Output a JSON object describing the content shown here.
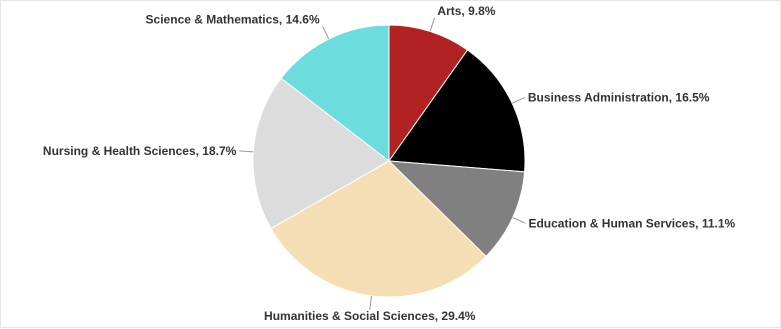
{
  "chart_data": {
    "type": "pie",
    "title": "",
    "start_angle_deg": 0,
    "direction": "clockwise",
    "slices": [
      {
        "name": "Arts",
        "value": 9.8,
        "label": "Arts, 9.8%",
        "color": "#b22222"
      },
      {
        "name": "Business Administration",
        "value": 16.5,
        "label": "Business Administration, 16.5%",
        "color": "#000000"
      },
      {
        "name": "Education & Human Services",
        "value": 11.1,
        "label": "Education & Human Services, 11.1%",
        "color": "#808080"
      },
      {
        "name": "Humanities & Social Sciences",
        "value": 29.4,
        "label": "Humanities & Social Sciences, 29.4%",
        "color": "#f5deb3"
      },
      {
        "name": "Nursing & Health Sciences",
        "value": 18.7,
        "label": "Nursing & Health Sciences, 18.7%",
        "color": "#dcdcdc"
      },
      {
        "name": "Science & Mathematics",
        "value": 14.6,
        "label": "Science & Mathematics, 14.6%",
        "color": "#6cdcdc"
      }
    ]
  }
}
